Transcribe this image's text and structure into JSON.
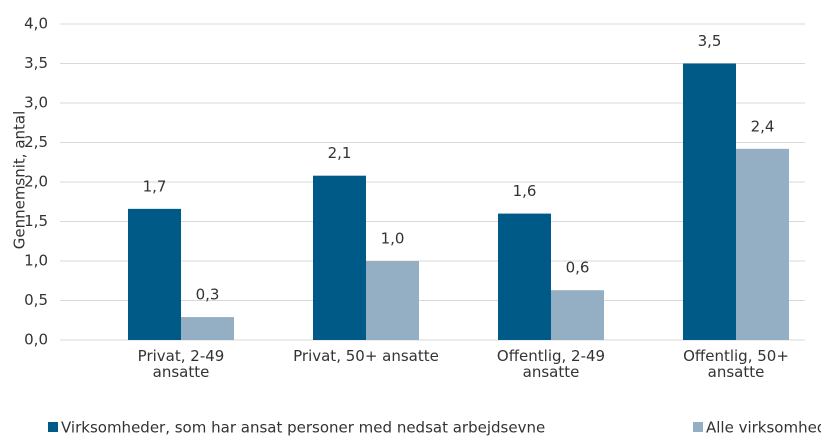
{
  "chart_data": {
    "type": "bar",
    "ylabel": "Gennemsnit, antal",
    "categories": [
      "Privat, 2-49\nansatte",
      "Privat, 50+ ansatte",
      "Offentlig, 2-49\nansatte",
      "Offentlig, 50+\nansatte"
    ],
    "series": [
      {
        "name": "Virksomheder, som har ansat personer med nedsat arbejdsevne",
        "color": "#005a87",
        "values": [
          1.66,
          2.08,
          1.6,
          3.5
        ],
        "value_labels": [
          "1,7",
          "2,1",
          "1,6",
          "3,5"
        ]
      },
      {
        "name": "Alle virksomheder",
        "color": "#94aec4",
        "values": [
          0.29,
          1.0,
          0.63,
          2.42
        ],
        "value_labels": [
          "0,3",
          "1,0",
          "0,6",
          "2,4"
        ]
      }
    ],
    "ylim": [
      0,
      4
    ],
    "yticks": [
      {
        "value": 0,
        "label": "0,0"
      },
      {
        "value": 0.5,
        "label": "0,5"
      },
      {
        "value": 1,
        "label": "1,0"
      },
      {
        "value": 1.5,
        "label": "1,5"
      },
      {
        "value": 2,
        "label": "2,0"
      },
      {
        "value": 2.5,
        "label": "2,5"
      },
      {
        "value": 3,
        "label": "3,0"
      },
      {
        "value": 3.5,
        "label": "3,5"
      },
      {
        "value": 4,
        "label": "4,0"
      }
    ],
    "grid": true,
    "legend": "bottom"
  }
}
